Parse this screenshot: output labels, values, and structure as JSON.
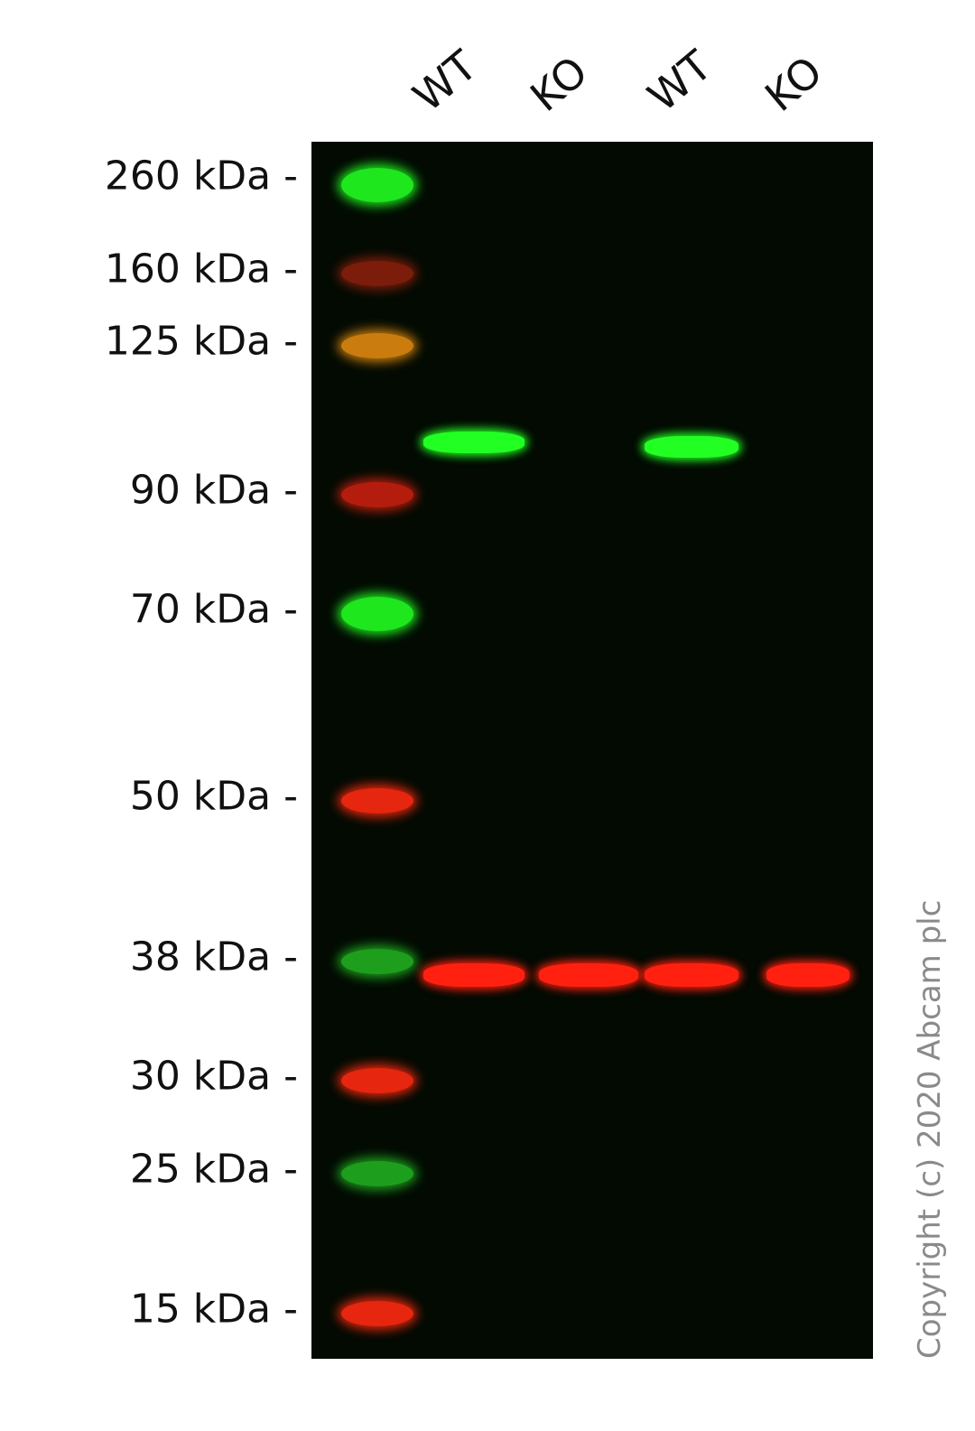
{
  "lanes": [
    {
      "label": "WT"
    },
    {
      "label": "KO"
    },
    {
      "label": "WT"
    },
    {
      "label": "KO"
    }
  ],
  "markers": [
    {
      "label": "260 kDa -",
      "kda": 260,
      "ladder_color": "#22ff22"
    },
    {
      "label": "160 kDa -",
      "kda": 160,
      "ladder_color": "#cc2a10"
    },
    {
      "label": "125 kDa -",
      "kda": 125,
      "ladder_color": "#e08a10"
    },
    {
      "label": "90 kDa -",
      "kda": 90,
      "ladder_color": "#c82010"
    },
    {
      "label": "70 kDa -",
      "kda": 70,
      "ladder_color": "#22ff22"
    },
    {
      "label": "50 kDa -",
      "kda": 50,
      "ladder_color": "#ff2a10"
    },
    {
      "label": "38 kDa -",
      "kda": 38,
      "ladder_color": "#20b020"
    },
    {
      "label": "30 kDa -",
      "kda": 30,
      "ladder_color": "#ff2a10"
    },
    {
      "label": "25 kDa -",
      "kda": 25,
      "ladder_color": "#20b020"
    },
    {
      "label": "15 kDa -",
      "kda": 15,
      "ladder_color": "#ff2a10"
    }
  ],
  "bands": [
    {
      "lane": 0,
      "kda": 100,
      "color": "#22ff22"
    },
    {
      "lane": 2,
      "kda": 99,
      "color": "#22ff22"
    },
    {
      "lane": 0,
      "kda": 37,
      "color": "#ff2010"
    },
    {
      "lane": 1,
      "kda": 37,
      "color": "#ff2010"
    },
    {
      "lane": 2,
      "kda": 37,
      "color": "#ff2010"
    },
    {
      "lane": 3,
      "kda": 37,
      "color": "#ff2010"
    }
  ],
  "colors": {
    "background": "#020a02",
    "target_channel": "#22ff22",
    "loading_control_channel": "#ff2010"
  },
  "copyright": "Copyright (c) 2020 Abcam plc"
}
